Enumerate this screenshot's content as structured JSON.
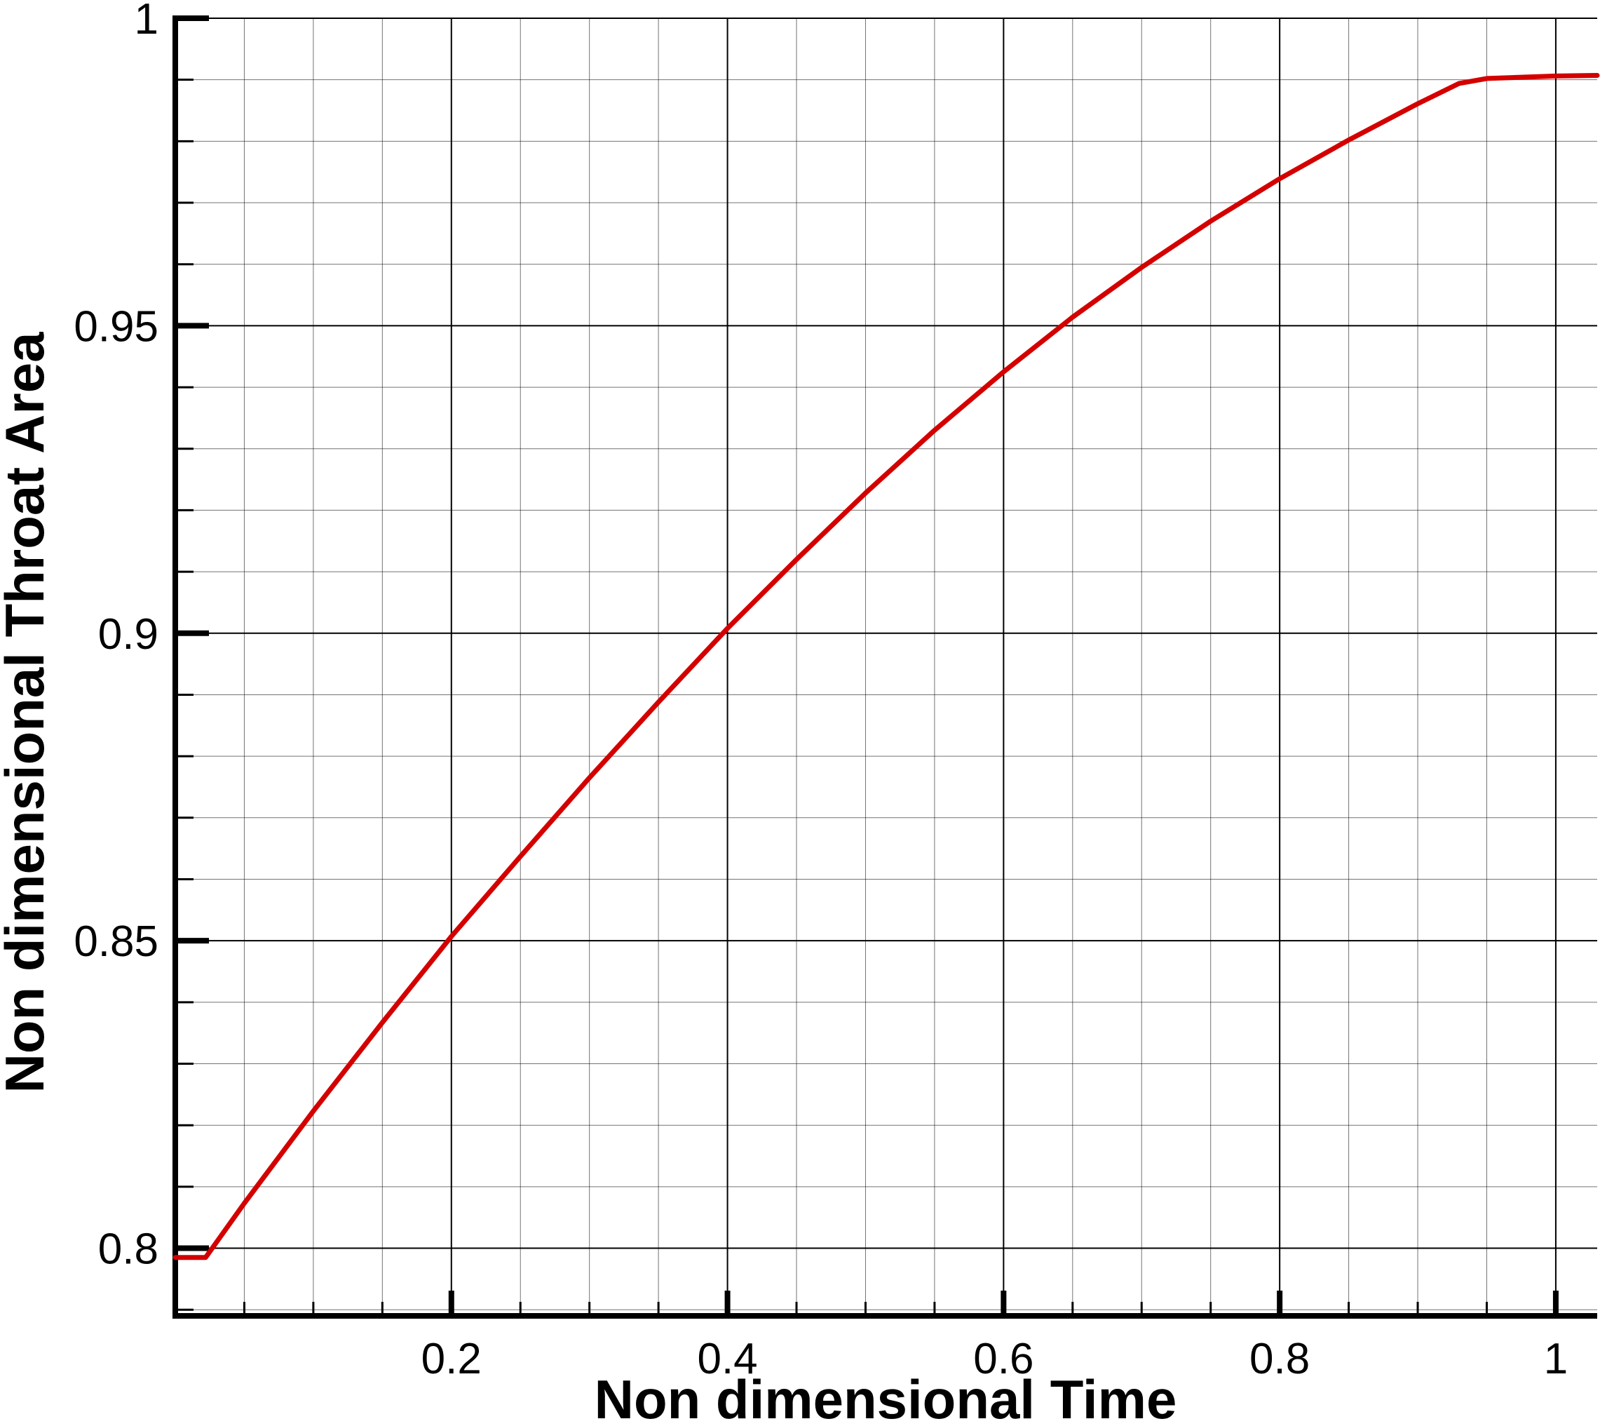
{
  "chart_data": {
    "type": "line",
    "title": "",
    "xlabel": "Non dimensional Time",
    "ylabel": "Non dimensional Throat Area",
    "xlim": [
      0.0,
      1.03
    ],
    "ylim": [
      0.789,
      1.0
    ],
    "x_ticks": [
      0.2,
      0.4,
      0.6,
      0.8,
      1.0
    ],
    "x_tick_labels": [
      "0.2",
      "0.4",
      "0.6",
      "0.8",
      "1"
    ],
    "x_minor_step": 0.05,
    "y_ticks": [
      0.8,
      0.85,
      0.9,
      0.95,
      1.0
    ],
    "y_tick_labels": [
      "0.8",
      "0.85",
      "0.9",
      "0.95",
      "1"
    ],
    "y_minor_step": 0.01,
    "grid": true,
    "legend": "none",
    "colors": {
      "line": "#d40000",
      "grid": "#000000",
      "axis": "#000000"
    },
    "series": [
      {
        "x": [
          0.0,
          0.022,
          0.05,
          0.1,
          0.15,
          0.2,
          0.25,
          0.3,
          0.35,
          0.4,
          0.45,
          0.5,
          0.55,
          0.6,
          0.65,
          0.7,
          0.75,
          0.8,
          0.85,
          0.9,
          0.93,
          0.95,
          1.0,
          1.03
        ],
        "y": [
          0.7985,
          0.7985,
          0.8073,
          0.8223,
          0.8367,
          0.8507,
          0.8637,
          0.8765,
          0.8888,
          0.9008,
          0.912,
          0.9228,
          0.933,
          0.9425,
          0.9514,
          0.9595,
          0.967,
          0.9739,
          0.9802,
          0.9861,
          0.9894,
          0.9902,
          0.9906,
          0.9907
        ]
      }
    ]
  }
}
